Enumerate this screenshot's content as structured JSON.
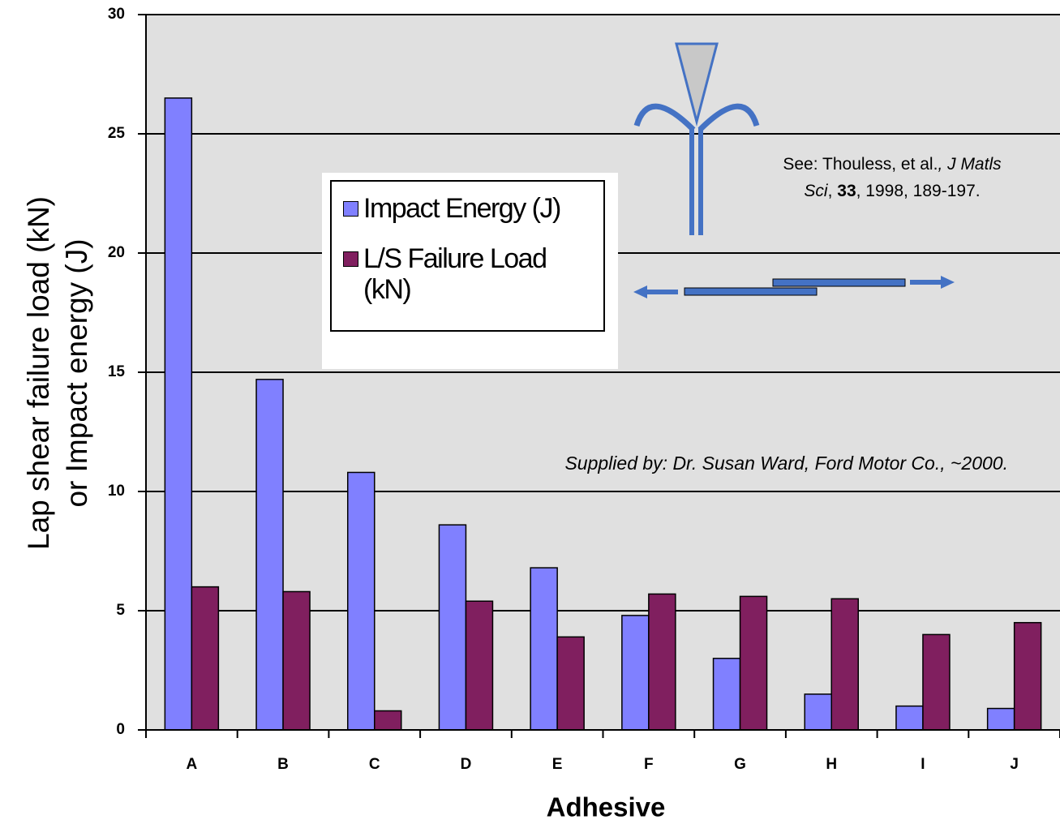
{
  "chart_data": {
    "type": "bar",
    "categories": [
      "A",
      "B",
      "C",
      "D",
      "E",
      "F",
      "G",
      "H",
      "I",
      "J"
    ],
    "series": [
      {
        "name": "Impact Energy (J)",
        "color": "#8080ff",
        "values": [
          26.5,
          14.7,
          10.8,
          8.6,
          6.8,
          4.8,
          3.0,
          1.5,
          1.0,
          0.9
        ]
      },
      {
        "name": "L/S Failure Load (kN)",
        "color": "#801f5f",
        "values": [
          6.0,
          5.8,
          0.8,
          5.4,
          3.9,
          5.7,
          5.6,
          5.5,
          4.0,
          4.5
        ]
      }
    ],
    "ylim": [
      0,
      30
    ],
    "yticks": [
      0,
      5,
      10,
      15,
      20,
      25,
      30
    ],
    "grid": true,
    "y_label": [
      "Lap shear failure load (kN)",
      "or Impact energy (J)"
    ],
    "x_label": "Adhesive",
    "citation": [
      "See: Thouless, et al.",
      ", ",
      "J Matls",
      "Sci",
      ", ",
      "33",
      ", 1998, 189-197."
    ],
    "note": "Supplied by: Dr. Susan Ward, Ford Motor Co., ~2000."
  }
}
